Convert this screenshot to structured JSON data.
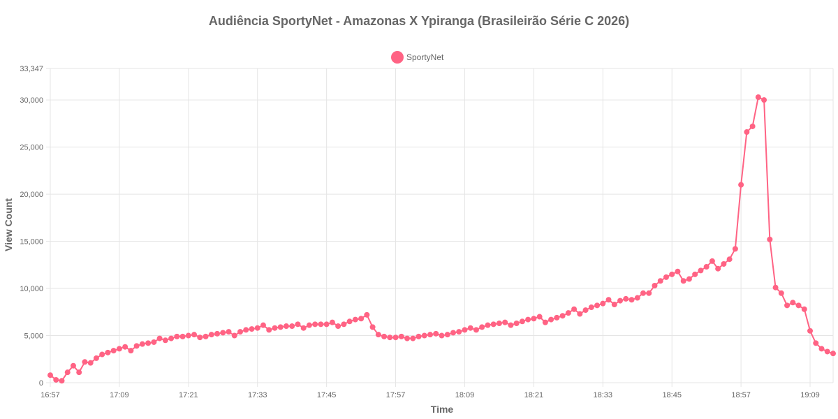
{
  "chart_data": {
    "type": "line",
    "title": "Audiência SportyNet - Amazonas X Ypiranga (Brasileirão Série C 2026)",
    "xlabel": "Time",
    "ylabel": "View Count",
    "legend_position": "top-center",
    "grid": true,
    "x_start": "16:57",
    "x_step_minutes": 1,
    "x_ticks": [
      "16:57",
      "17:09",
      "17:21",
      "17:33",
      "17:45",
      "17:57",
      "18:09",
      "18:21",
      "18:33",
      "18:45",
      "18:57",
      "19:09"
    ],
    "y_ticks": [
      0,
      5000,
      10000,
      15000,
      20000,
      25000,
      30000,
      33347
    ],
    "y_tick_labels": [
      "0",
      "5,000",
      "10,000",
      "15,000",
      "20,000",
      "25,000",
      "30,000",
      "33,347"
    ],
    "ylim": [
      0,
      33347
    ],
    "series": [
      {
        "name": "SportyNet",
        "color": "#ff6384",
        "values": [
          800,
          300,
          200,
          1100,
          1800,
          1100,
          2200,
          2100,
          2600,
          3000,
          3200,
          3400,
          3600,
          3800,
          3400,
          3900,
          4100,
          4200,
          4300,
          4700,
          4500,
          4700,
          4900,
          4900,
          5000,
          5100,
          4800,
          4900,
          5100,
          5200,
          5300,
          5400,
          5000,
          5400,
          5600,
          5700,
          5800,
          6100,
          5600,
          5800,
          5900,
          6000,
          6000,
          6200,
          5800,
          6100,
          6200,
          6200,
          6200,
          6400,
          6000,
          6200,
          6500,
          6700,
          6800,
          7200,
          5900,
          5100,
          4900,
          4800,
          4800,
          4900,
          4700,
          4700,
          4900,
          5000,
          5100,
          5200,
          5000,
          5100,
          5300,
          5400,
          5600,
          5800,
          5600,
          5900,
          6100,
          6200,
          6300,
          6400,
          6100,
          6300,
          6500,
          6700,
          6800,
          7000,
          6400,
          6700,
          6900,
          7100,
          7400,
          7800,
          7300,
          7700,
          8000,
          8200,
          8400,
          8800,
          8300,
          8700,
          8900,
          8800,
          9000,
          9500,
          9500,
          10300,
          10800,
          11200,
          11500,
          11800,
          10800,
          11000,
          11500,
          11900,
          12300,
          12900,
          12100,
          12600,
          13100,
          14200,
          21000,
          26600,
          27200,
          30300,
          30000,
          15200,
          10100,
          9500,
          8200,
          8500,
          8200,
          7800,
          5500,
          4200,
          3600,
          3300,
          3100
        ]
      }
    ]
  }
}
